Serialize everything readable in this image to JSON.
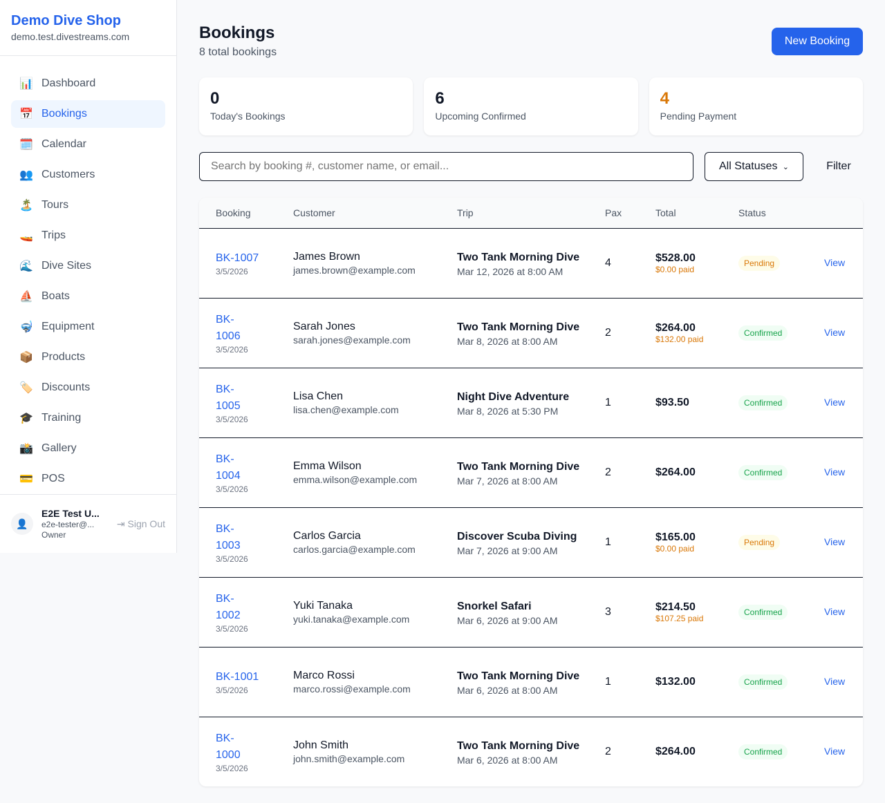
{
  "sidebar": {
    "brand": "Demo Dive Shop",
    "domain": "demo.test.divestreams.com",
    "items": [
      {
        "label": "Dashboard",
        "icon": "📊"
      },
      {
        "label": "Bookings",
        "icon": "📅",
        "active": true
      },
      {
        "label": "Calendar",
        "icon": "🗓️"
      },
      {
        "label": "Customers",
        "icon": "👥"
      },
      {
        "label": "Tours",
        "icon": "🏝️"
      },
      {
        "label": "Trips",
        "icon": "🚤"
      },
      {
        "label": "Dive Sites",
        "icon": "🌊"
      },
      {
        "label": "Boats",
        "icon": "⛵"
      },
      {
        "label": "Equipment",
        "icon": "🤿"
      },
      {
        "label": "Products",
        "icon": "📦"
      },
      {
        "label": "Discounts",
        "icon": "🏷️"
      },
      {
        "label": "Training",
        "icon": "🎓"
      },
      {
        "label": "Gallery",
        "icon": "📸"
      },
      {
        "label": "POS",
        "icon": "💳"
      }
    ],
    "user": {
      "name": "E2E Test U...",
      "email": "e2e-tester@...",
      "role": "Owner",
      "sign_out": "Sign Out"
    }
  },
  "header": {
    "title": "Bookings",
    "subtitle": "8 total bookings",
    "new_button": "New Booking"
  },
  "stats": [
    {
      "value": "0",
      "label": "Today's Bookings",
      "color": "#111827"
    },
    {
      "value": "6",
      "label": "Upcoming Confirmed",
      "color": "#111827"
    },
    {
      "value": "4",
      "label": "Pending Payment",
      "color": "#d97706"
    }
  ],
  "filters": {
    "search_placeholder": "Search by booking #, customer name, or email...",
    "status": "All Statuses",
    "filter_button": "Filter"
  },
  "table": {
    "headers": [
      "Booking",
      "Customer",
      "Trip",
      "Pax",
      "Total",
      "Status",
      ""
    ],
    "rows": [
      {
        "id": "BK-1007",
        "date": "3/5/2026",
        "customer": "James Brown",
        "email": "james.brown@example.com",
        "trip": "Two Tank Morning Dive",
        "trip_date": "Mar 12, 2026 at 8:00 AM",
        "pax": "4",
        "total": "$528.00",
        "paid": "$0.00 paid",
        "status": "Pending",
        "action": "View"
      },
      {
        "id": "BK-1006",
        "date": "3/5/2026",
        "customer": "Sarah Jones",
        "email": "sarah.jones@example.com",
        "trip": "Two Tank Morning Dive",
        "trip_date": "Mar 8, 2026 at 8:00 AM",
        "pax": "2",
        "total": "$264.00",
        "paid": "$132.00 paid",
        "status": "Confirmed",
        "action": "View"
      },
      {
        "id": "BK-1005",
        "date": "3/5/2026",
        "customer": "Lisa Chen",
        "email": "lisa.chen@example.com",
        "trip": "Night Dive Adventure",
        "trip_date": "Mar 8, 2026 at 5:30 PM",
        "pax": "1",
        "total": "$93.50",
        "paid": null,
        "status": "Confirmed",
        "action": "View"
      },
      {
        "id": "BK-1004",
        "date": "3/5/2026",
        "customer": "Emma Wilson",
        "email": "emma.wilson@example.com",
        "trip": "Two Tank Morning Dive",
        "trip_date": "Mar 7, 2026 at 8:00 AM",
        "pax": "2",
        "total": "$264.00",
        "paid": null,
        "status": "Confirmed",
        "action": "View"
      },
      {
        "id": "BK-1003",
        "date": "3/5/2026",
        "customer": "Carlos Garcia",
        "email": "carlos.garcia@example.com",
        "trip": "Discover Scuba Diving",
        "trip_date": "Mar 7, 2026 at 9:00 AM",
        "pax": "1",
        "total": "$165.00",
        "paid": "$0.00 paid",
        "status": "Pending",
        "action": "View"
      },
      {
        "id": "BK-1002",
        "date": "3/5/2026",
        "customer": "Yuki Tanaka",
        "email": "yuki.tanaka@example.com",
        "trip": "Snorkel Safari",
        "trip_date": "Mar 6, 2026 at 9:00 AM",
        "pax": "3",
        "total": "$214.50",
        "paid": "$107.25 paid",
        "status": "Confirmed",
        "action": "View"
      },
      {
        "id": "BK-1001",
        "date": "3/5/2026",
        "customer": "Marco Rossi",
        "email": "marco.rossi@example.com",
        "trip": "Two Tank Morning Dive",
        "trip_date": "Mar 6, 2026 at 8:00 AM",
        "pax": "1",
        "total": "$132.00",
        "paid": null,
        "status": "Confirmed",
        "action": "View"
      },
      {
        "id": "BK-1000",
        "date": "3/5/2026",
        "customer": "John Smith",
        "email": "john.smith@example.com",
        "trip": "Two Tank Morning Dive",
        "trip_date": "Mar 6, 2026 at 8:00 AM",
        "pax": "2",
        "total": "$264.00",
        "paid": null,
        "status": "Confirmed",
        "action": "View"
      }
    ]
  }
}
